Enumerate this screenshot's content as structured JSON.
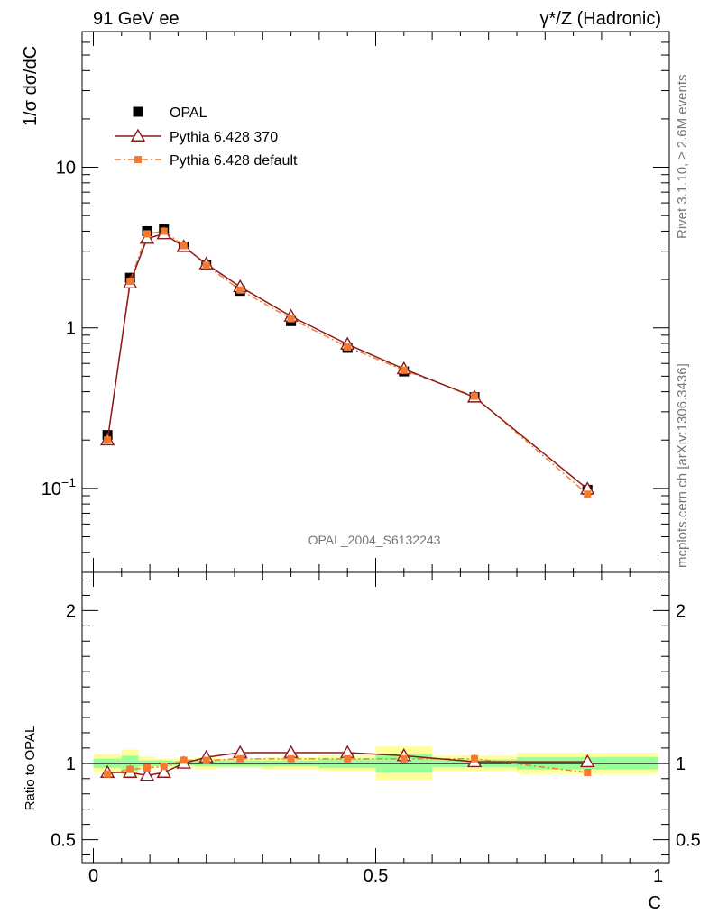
{
  "header": {
    "left": "91 GeV ee",
    "right": "γ*/Z (Hadronic)"
  },
  "side_labels": {
    "rivet": "Rivet 3.1.10, ≥ 2.6M events",
    "mcplots": "mcplots.cern.ch [arXiv:1306.3436]"
  },
  "watermark": "OPAL_2004_S6132243",
  "colors": {
    "data": "#000000",
    "py370": "#8b1a1a",
    "pydefault": "#f47a30",
    "band_inner": "#99ff99",
    "band_outer": "#ffff99"
  },
  "chart_data": [
    {
      "type": "line",
      "scale": "log",
      "ylabel": "1/σ dσ/dC",
      "xlim": [
        0,
        1
      ],
      "ylim": [
        0.03,
        70
      ],
      "yticks": [
        {
          "value": 0.1,
          "base": "10",
          "exp": "−1"
        },
        {
          "value": 1,
          "label": "1"
        },
        {
          "value": 10,
          "label": "10"
        }
      ],
      "legend": [
        "OPAL",
        "Pythia 6.428 370",
        "Pythia 6.428 default"
      ],
      "legend_position": "top-left",
      "x": [
        0.025,
        0.065,
        0.095,
        0.125,
        0.16,
        0.2,
        0.26,
        0.35,
        0.45,
        0.55,
        0.675,
        0.875
      ],
      "series": [
        {
          "name": "OPAL",
          "values": [
            0.215,
            2.05,
            4.0,
            4.1,
            3.2,
            2.45,
            1.7,
            1.1,
            0.75,
            0.535,
            0.37,
            0.098
          ]
        },
        {
          "name": "Pythia 6.428 370",
          "values": [
            0.2,
            1.9,
            3.6,
            3.85,
            3.2,
            2.5,
            1.8,
            1.18,
            0.79,
            0.555,
            0.37,
            0.099
          ]
        },
        {
          "name": "Pythia 6.428 default",
          "values": [
            0.2,
            1.95,
            3.85,
            4.0,
            3.25,
            2.45,
            1.72,
            1.14,
            0.76,
            0.545,
            0.375,
            0.092
          ]
        }
      ]
    },
    {
      "type": "line",
      "ylabel": "Ratio to OPAL",
      "xlabel": "C",
      "xlim": [
        0,
        1
      ],
      "ylim": [
        0.35,
        2.25
      ],
      "yticks": [
        0.5,
        1,
        2
      ],
      "ytick_labels": [
        "0.5",
        "1",
        "2"
      ],
      "xticks": [
        0,
        0.5,
        1
      ],
      "xtick_labels": [
        "0",
        "0.5",
        "1"
      ],
      "x": [
        0.025,
        0.065,
        0.095,
        0.125,
        0.16,
        0.2,
        0.26,
        0.35,
        0.45,
        0.55,
        0.675,
        0.875
      ],
      "bins": [
        [
          0,
          0.05
        ],
        [
          0.05,
          0.08
        ],
        [
          0.08,
          0.11
        ],
        [
          0.11,
          0.14
        ],
        [
          0.14,
          0.18
        ],
        [
          0.18,
          0.22
        ],
        [
          0.22,
          0.3
        ],
        [
          0.3,
          0.4
        ],
        [
          0.4,
          0.5
        ],
        [
          0.5,
          0.6
        ],
        [
          0.6,
          0.75
        ],
        [
          0.75,
          1.0
        ]
      ],
      "band_inner": [
        0.03,
        0.05,
        0.02,
        0.02,
        0.015,
        0.02,
        0.02,
        0.02,
        0.03,
        0.06,
        0.025,
        0.04
      ],
      "band_outer": [
        0.06,
        0.09,
        0.04,
        0.03,
        0.03,
        0.04,
        0.03,
        0.04,
        0.05,
        0.11,
        0.05,
        0.07
      ],
      "series": [
        {
          "name": "Pythia 6.428 370",
          "values": [
            0.94,
            0.94,
            0.92,
            0.94,
            1.0,
            1.04,
            1.07,
            1.07,
            1.07,
            1.05,
            1.01,
            1.01
          ]
        },
        {
          "name": "Pythia 6.428 default",
          "values": [
            0.93,
            0.96,
            0.97,
            0.98,
            1.02,
            1.02,
            1.03,
            1.03,
            1.03,
            1.03,
            1.03,
            0.94
          ]
        }
      ]
    }
  ]
}
